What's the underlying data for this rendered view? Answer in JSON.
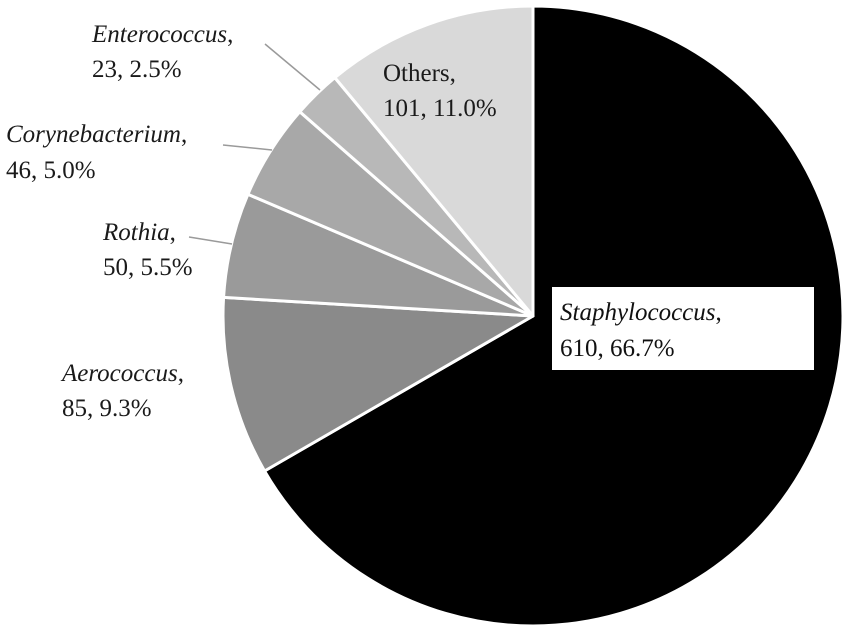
{
  "chart_data": {
    "type": "pie",
    "title": "",
    "slices": [
      {
        "name": "Staphylococcus",
        "count": "610",
        "percent": "66.7%",
        "value": 610,
        "color": "#000000",
        "italic": true
      },
      {
        "name": "Aerococcus",
        "count": "85",
        "percent": "9.3%",
        "value": 85,
        "color": "#8a8a8a",
        "italic": true
      },
      {
        "name": "Rothia",
        "count": "50",
        "percent": "5.5%",
        "value": 50,
        "color": "#9a9a9a",
        "italic": true
      },
      {
        "name": "Corynebacterium",
        "count": "46",
        "percent": "5.0%",
        "value": 46,
        "color": "#a8a8a8",
        "italic": true
      },
      {
        "name": "Enterococcus",
        "count": "23",
        "percent": "2.5%",
        "value": 23,
        "color": "#b8b8b8",
        "italic": true
      },
      {
        "name": "Others",
        "count": "101",
        "percent": "11.0%",
        "value": 101,
        "color": "#d9d9d9",
        "italic": false
      }
    ],
    "start": "12 o'clock",
    "direction": "clockwise",
    "slice_border": "#ffffff",
    "legend": "none"
  }
}
